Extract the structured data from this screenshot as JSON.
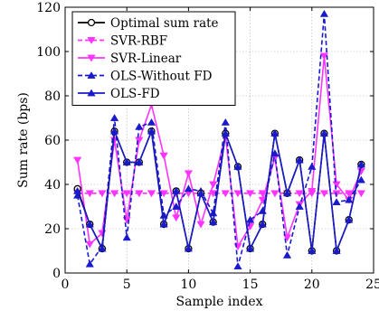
{
  "chart_data": {
    "type": "line",
    "xlabel": "Sample index",
    "ylabel": "Sum rate (bps)",
    "xlim": [
      0,
      25
    ],
    "ylim": [
      0,
      120
    ],
    "xticks": [
      0,
      5,
      10,
      15,
      20,
      25
    ],
    "yticks": [
      0,
      20,
      40,
      60,
      80,
      100,
      120
    ],
    "grid": true,
    "legend_position": "top-left",
    "x": [
      1,
      2,
      3,
      4,
      5,
      6,
      7,
      8,
      9,
      10,
      11,
      12,
      13,
      14,
      15,
      16,
      17,
      18,
      19,
      20,
      21,
      22,
      23,
      24
    ],
    "series": [
      {
        "name": "Optimal sum rate",
        "color": "#000000",
        "dash": "solid",
        "marker": "circle",
        "values": [
          38,
          22,
          11,
          64,
          50,
          50,
          64,
          22,
          37,
          11,
          36,
          23,
          63,
          48,
          11,
          22,
          63,
          36,
          51,
          10,
          63,
          10,
          24,
          49
        ]
      },
      {
        "name": "SVR-RBF",
        "color": "#ff33ff",
        "dash": "dashed",
        "marker": "triangle-down",
        "values": [
          36,
          36,
          36,
          36,
          36,
          36,
          36,
          36,
          36,
          36,
          36,
          36,
          36,
          36,
          36,
          36,
          36,
          36,
          36,
          36,
          36,
          36,
          36,
          36
        ]
      },
      {
        "name": "SVR-Linear",
        "color": "#ff33ff",
        "dash": "solid",
        "marker": "triangle-down",
        "values": [
          51,
          13,
          18,
          60,
          24,
          60,
          76,
          53,
          25,
          45,
          22,
          40,
          62,
          12,
          21,
          33,
          52,
          16,
          31,
          37,
          98,
          40,
          33,
          46
        ]
      },
      {
        "name": "OLS-Without FD",
        "color": "#1a1acc",
        "dash": "dashed",
        "marker": "triangle-up",
        "values": [
          35,
          4,
          12,
          70,
          16,
          66,
          68,
          26,
          30,
          38,
          37,
          27,
          68,
          3,
          24,
          28,
          54,
          8,
          30,
          48,
          117,
          32,
          33,
          42
        ]
      },
      {
        "name": "OLS-FD",
        "color": "#1a1acc",
        "dash": "solid",
        "marker": "triangle-up",
        "values": [
          37,
          22,
          11,
          64,
          50,
          50,
          64,
          22,
          37,
          11,
          36,
          23,
          63,
          48,
          11,
          22,
          63,
          36,
          51,
          10,
          63,
          10,
          24,
          49
        ]
      }
    ]
  }
}
